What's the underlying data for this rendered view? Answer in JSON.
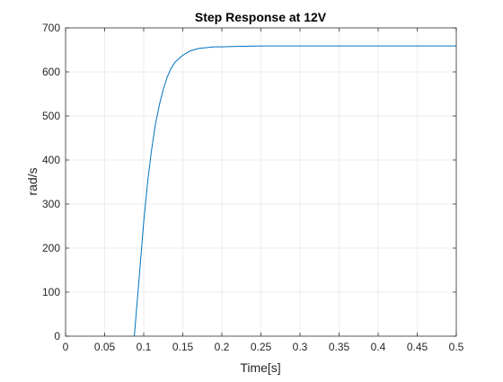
{
  "chart_data": {
    "type": "line",
    "title": "Step Response at 12V",
    "xlabel": "Time[s]",
    "ylabel": "rad/s",
    "xlim": [
      0,
      0.5
    ],
    "ylim": [
      0,
      700
    ],
    "xticks": [
      0,
      0.05,
      0.1,
      0.15,
      0.2,
      0.25,
      0.3,
      0.35,
      0.4,
      0.45,
      0.5
    ],
    "xtick_labels": [
      "0",
      "0.05",
      "0.1",
      "0.15",
      "0.2",
      "0.25",
      "0.3",
      "0.35",
      "0.4",
      "0.45",
      "0.5"
    ],
    "yticks": [
      0,
      100,
      200,
      300,
      400,
      500,
      600,
      700
    ],
    "ytick_labels": [
      "0",
      "100",
      "200",
      "300",
      "400",
      "500",
      "600",
      "700"
    ],
    "grid": true,
    "legend": "none",
    "series": [
      {
        "color": "#0072bd",
        "x": [
          0.088,
          0.095,
          0.1,
          0.105,
          0.11,
          0.115,
          0.12,
          0.125,
          0.13,
          0.135,
          0.14,
          0.15,
          0.16,
          0.17,
          0.18,
          0.19,
          0.2,
          0.22,
          0.25,
          0.3,
          0.35,
          0.4,
          0.45,
          0.5
        ],
        "y": [
          0,
          150,
          260,
          350,
          422,
          481,
          525,
          560,
          588,
          608,
          622,
          638,
          648,
          653,
          655,
          657,
          657,
          658,
          659,
          659,
          659,
          659,
          659,
          659
        ]
      }
    ]
  },
  "colors": {
    "axes_line": "#262626",
    "grid": "#e6e6e6",
    "series": "#0072bd",
    "background": "#ffffff"
  }
}
